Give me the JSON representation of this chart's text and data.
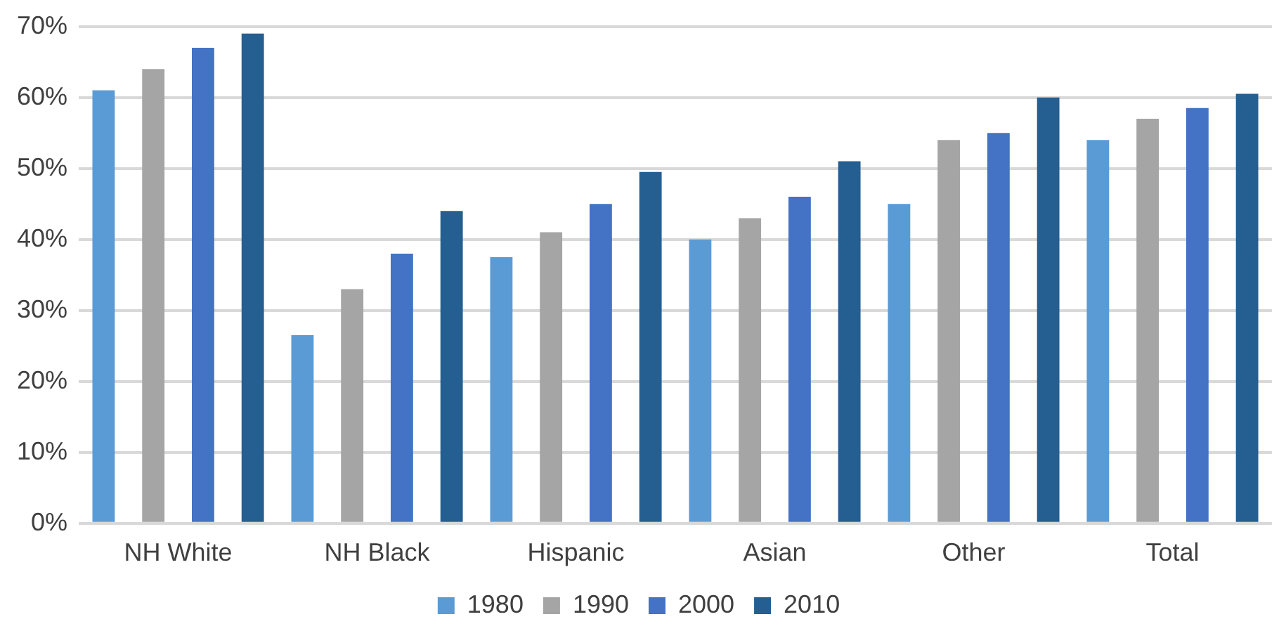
{
  "chart_data": {
    "type": "bar",
    "categories": [
      "NH White",
      "NH Black",
      "Hispanic",
      "Asian",
      "Other",
      "Total"
    ],
    "series": [
      {
        "name": "1980",
        "color": "#5b9bd5",
        "values": [
          61,
          26.5,
          37.5,
          40,
          45,
          54
        ]
      },
      {
        "name": "1990",
        "color": "#a5a5a5",
        "values": [
          64,
          33,
          41,
          43,
          54,
          57
        ]
      },
      {
        "name": "2000",
        "color": "#4472c4",
        "values": [
          67,
          38,
          45,
          46,
          55,
          58.5
        ]
      },
      {
        "name": "2010",
        "color": "#255e91",
        "values": [
          69,
          44,
          49.5,
          51,
          60,
          60.5
        ]
      }
    ],
    "ylim": [
      0,
      70
    ],
    "yticks": [
      {
        "value": 0,
        "label": "0%"
      },
      {
        "value": 10,
        "label": "10%"
      },
      {
        "value": 20,
        "label": "20%"
      },
      {
        "value": 30,
        "label": "30%"
      },
      {
        "value": 40,
        "label": "40%"
      },
      {
        "value": 50,
        "label": "50%"
      },
      {
        "value": 60,
        "label": "60%"
      },
      {
        "value": 70,
        "label": "70%"
      }
    ],
    "grid": "y",
    "legend": "bottom"
  }
}
